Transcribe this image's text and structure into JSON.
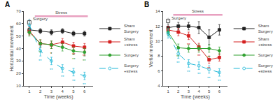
{
  "chart_data": [
    {
      "type": "line",
      "title": "A",
      "x_label": "Time (weeks)",
      "y_label": "Horizontal movement",
      "x": [
        1,
        2,
        3,
        4,
        5,
        6
      ],
      "xlim": [
        0.5,
        6.8
      ],
      "xticks": [
        1,
        2,
        3,
        4,
        5,
        6
      ],
      "ylim": [
        10,
        70
      ],
      "yticks": [
        10,
        20,
        30,
        40,
        50,
        60,
        70
      ],
      "grid": false,
      "series": [
        {
          "name": "Sham\nSurgery",
          "color": "#222222",
          "marker": "square",
          "line_style": "solid",
          "values": [
            55,
            54,
            53,
            54,
            52,
            52
          ],
          "errors": [
            3,
            2,
            2,
            2,
            2,
            2
          ]
        },
        {
          "name": "Sham\n+stress",
          "color": "#d42020",
          "marker": "square",
          "line_style": "solid",
          "values": [
            54,
            44,
            43,
            45,
            42,
            41
          ],
          "errors": [
            3,
            3,
            3,
            3,
            3,
            3
          ]
        },
        {
          "name": "Surgery",
          "color": "#30a030",
          "marker": "circle",
          "line_style": "solid",
          "values": [
            53,
            44,
            43,
            41,
            38,
            37
          ],
          "errors": [
            3,
            3,
            3,
            3,
            3,
            3
          ]
        },
        {
          "name": "Surgery\n+stress",
          "color": "#20b8d8",
          "marker": "open circle",
          "line_style": "dashed",
          "values": [
            59,
            38,
            30,
            24,
            21,
            18
          ],
          "errors": [
            4,
            4,
            3,
            3,
            3,
            3
          ]
        }
      ],
      "stress_bar": {
        "text": "Stress",
        "x": [
          1.5,
          6.3
        ],
        "y": 66,
        "color": "#e8a0c0"
      },
      "surgery_marker": {
        "text": "Surgery",
        "x": 1.0,
        "y": 64,
        "marker_y": 61
      },
      "annotations": [
        {
          "x": 2,
          "series": "Surgery",
          "text": "*"
        },
        {
          "x": 2,
          "series": "Surgery\n+stress",
          "text": "**"
        },
        {
          "x": 3,
          "series": "Sham\n+stress",
          "text": "*"
        },
        {
          "x": 3,
          "series": "Surgery",
          "text": "*"
        },
        {
          "x": 3,
          "series": "Surgery\n+stress",
          "text": "**"
        },
        {
          "x": 4,
          "series": "Surgery\n+stress",
          "text": "**"
        },
        {
          "x": 5,
          "series": "Sham\n+stress",
          "text": "**"
        },
        {
          "x": 5,
          "series": "Surgery",
          "text": "**"
        },
        {
          "x": 5,
          "series": "Surgery\n+stress",
          "text": "**"
        },
        {
          "x": 6,
          "series": "Sham\n+stress",
          "text": "**"
        },
        {
          "x": 6,
          "series": "Surgery",
          "text": "**"
        },
        {
          "x": 6,
          "series": "Surgery\n+stress",
          "text": "**"
        }
      ]
    },
    {
      "type": "line",
      "title": "B",
      "x_label": "Time (weeks)",
      "y_label": "Vertial movement",
      "x": [
        1,
        2,
        3,
        4,
        5,
        6
      ],
      "xlim": [
        0.5,
        6.8
      ],
      "xticks": [
        1,
        2,
        3,
        4,
        5,
        6
      ],
      "ylim": [
        4,
        14
      ],
      "yticks": [
        4,
        6,
        8,
        10,
        12,
        14
      ],
      "grid": false,
      "series": [
        {
          "name": "Sham\nSurgery",
          "color": "#222222",
          "marker": "square",
          "line_style": "solid",
          "values": [
            11.8,
            12.0,
            12.0,
            11.8,
            10.5,
            11.5
          ],
          "errors": [
            0.5,
            0.5,
            0.5,
            0.8,
            1.0,
            0.7
          ]
        },
        {
          "name": "Sham\n+stress",
          "color": "#d42020",
          "marker": "square",
          "line_style": "solid",
          "values": [
            11.5,
            11.2,
            10.7,
            9.2,
            7.5,
            7.8
          ],
          "errors": [
            0.5,
            0.5,
            0.5,
            0.5,
            0.5,
            0.5
          ]
        },
        {
          "name": "Surgery",
          "color": "#30a030",
          "marker": "circle",
          "line_style": "solid",
          "values": [
            11.2,
            9.1,
            9.0,
            9.0,
            9.0,
            8.7
          ],
          "errors": [
            0.5,
            0.5,
            0.5,
            0.5,
            0.5,
            0.5
          ]
        },
        {
          "name": "Surgery\n+stress",
          "color": "#20b8d8",
          "marker": "open circle",
          "line_style": "dashed",
          "values": [
            11.0,
            8.3,
            7.0,
            6.7,
            6.2,
            5.8
          ],
          "errors": [
            0.6,
            0.6,
            0.5,
            0.5,
            0.5,
            0.5
          ]
        }
      ],
      "stress_bar": {
        "text": "Stress",
        "x": [
          1.5,
          6.3
        ],
        "y": 13.5,
        "color": "#e8a0c0"
      },
      "surgery_marker": {
        "text": "Surgery",
        "x": 1.0,
        "y": 13.1,
        "marker_y": 12.7
      },
      "annotations": [
        {
          "x": 2,
          "series": "Surgery",
          "text": "**"
        },
        {
          "x": 2,
          "series": "Surgery\n+stress",
          "text": "**"
        },
        {
          "x": 3,
          "series": "Sham\n+stress",
          "text": "**"
        },
        {
          "x": 3,
          "series": "Surgery\n+stress",
          "text": "**"
        },
        {
          "x": 4,
          "series": "Sham\n+stress",
          "text": "**"
        },
        {
          "x": 4,
          "series": "Surgery\n+stress",
          "text": "**"
        },
        {
          "x": 5,
          "series": "Sham\n+stress",
          "text": "**"
        },
        {
          "x": 5,
          "series": "Surgery",
          "text": "**"
        },
        {
          "x": 5,
          "series": "Surgery\n+stress",
          "text": "**"
        },
        {
          "x": 6,
          "series": "Surgery\n+stress",
          "text": "**"
        }
      ]
    }
  ]
}
